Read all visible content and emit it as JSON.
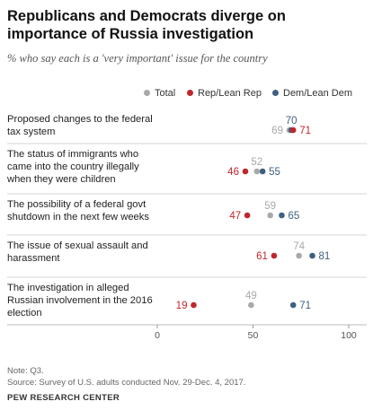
{
  "title": "Republicans and Democrats diverge on importance of Russia investigation",
  "subtitle": "% who say each is a 'very important' issue for the country",
  "legend": {
    "total": "Total",
    "rep": "Rep/Lean Rep",
    "dem": "Dem/Lean Dem"
  },
  "colors": {
    "total": "#a9a9a9",
    "rep": "#c0272d",
    "dem": "#3e5f80",
    "grid": "#d4d4d4"
  },
  "note": "Note: Q3.",
  "source": "Source: Survey of U.S. adults conducted Nov. 29-Dec. 4, 2017.",
  "org": "PEW RESEARCH CENTER",
  "chart_data": {
    "type": "scatter",
    "xlim": [
      0,
      100
    ],
    "xticks": [
      0,
      50,
      100
    ],
    "categories": [
      "Proposed changes to the federal tax system",
      "The status of immigrants who came into the country illegally when they were children",
      "The possibility of a federal govt shutdown in the next few weeks",
      "The issue of sexual assault and harassment",
      "The investigation in alleged Russian involvement in the 2016 election"
    ],
    "series": [
      {
        "name": "Total",
        "values": [
          69,
          52,
          59,
          74,
          49
        ]
      },
      {
        "name": "Rep/Lean Rep",
        "values": [
          71,
          46,
          47,
          61,
          19
        ]
      },
      {
        "name": "Dem/Lean Dem",
        "values": [
          70,
          55,
          65,
          81,
          71
        ]
      }
    ]
  }
}
